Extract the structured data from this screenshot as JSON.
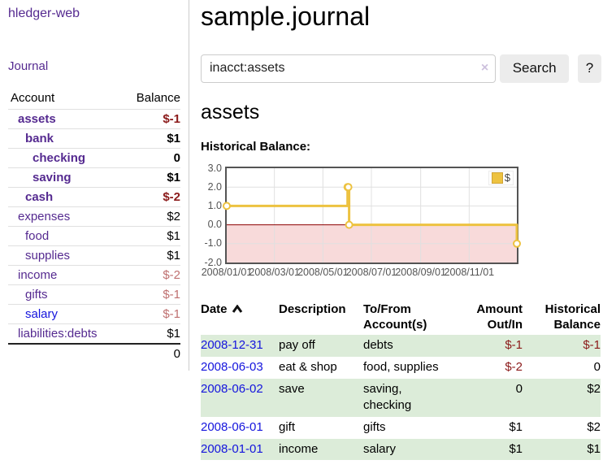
{
  "sidebar": {
    "brand": "hledger-web",
    "nav": [
      {
        "label": "Journal"
      }
    ],
    "accounts_table": {
      "headers": [
        "Account",
        "Balance"
      ],
      "rows": [
        {
          "account": "assets",
          "balance": "$-1",
          "level": 1,
          "bold": true,
          "balance_class": "neg-strong",
          "link_blue": false
        },
        {
          "account": "bank",
          "balance": "$1",
          "level": 2,
          "bold": true,
          "balance_class": "",
          "link_blue": false
        },
        {
          "account": "checking",
          "balance": "0",
          "level": 3,
          "bold": true,
          "balance_class": "",
          "link_blue": false
        },
        {
          "account": "saving",
          "balance": "$1",
          "level": 3,
          "bold": true,
          "balance_class": "",
          "link_blue": false
        },
        {
          "account": "cash",
          "balance": "$-2",
          "level": 2,
          "bold": true,
          "balance_class": "neg-strong",
          "link_blue": false
        },
        {
          "account": "expenses",
          "balance": "$2",
          "level": 1,
          "bold": false,
          "balance_class": "",
          "link_blue": false
        },
        {
          "account": "food",
          "balance": "$1",
          "level": 2,
          "bold": false,
          "balance_class": "",
          "link_blue": false
        },
        {
          "account": "supplies",
          "balance": "$1",
          "level": 2,
          "bold": false,
          "balance_class": "",
          "link_blue": false
        },
        {
          "account": "income",
          "balance": "$-2",
          "level": 1,
          "bold": false,
          "balance_class": "neg-soft",
          "link_blue": false
        },
        {
          "account": "gifts",
          "balance": "$-1",
          "level": 2,
          "bold": false,
          "balance_class": "neg-soft",
          "link_blue": false
        },
        {
          "account": "salary",
          "balance": "$-1",
          "level": 2,
          "bold": false,
          "balance_class": "neg-soft",
          "link_blue": true
        },
        {
          "account": "liabilities:debts",
          "balance": "$1",
          "level": 1,
          "bold": false,
          "balance_class": "",
          "link_blue": false
        }
      ],
      "total": "0"
    }
  },
  "main": {
    "title": "sample.journal",
    "search": {
      "value": "inacct:assets",
      "clear_icon": "×",
      "button_label": "Search",
      "help_label": "?"
    },
    "account_heading": "assets",
    "register_table": {
      "headers": [
        "Date",
        "Description",
        "To/From Account(s)",
        "Amount Out/In",
        "Historical Balance"
      ],
      "rows": [
        {
          "date": "2008-12-31",
          "description": "pay off",
          "accounts": "debts",
          "amount": "$-1",
          "amount_neg": true,
          "balance": "$-1",
          "balance_neg": true
        },
        {
          "date": "2008-06-03",
          "description": "eat & shop",
          "accounts": "food, supplies",
          "amount": "$-2",
          "amount_neg": true,
          "balance": "0",
          "balance_neg": false
        },
        {
          "date": "2008-06-02",
          "description": "save",
          "accounts": "saving,\nchecking",
          "amount": "0",
          "amount_neg": false,
          "balance": "$2",
          "balance_neg": false
        },
        {
          "date": "2008-06-01",
          "description": "gift",
          "accounts": "gifts",
          "amount": "$1",
          "amount_neg": false,
          "balance": "$2",
          "balance_neg": false
        },
        {
          "date": "2008-01-01",
          "description": "income",
          "accounts": "salary",
          "amount": "$1",
          "amount_neg": false,
          "balance": "$1",
          "balance_neg": false
        }
      ]
    }
  },
  "chart_data": {
    "type": "line",
    "title": "Historical Balance:",
    "steps": true,
    "series": [
      {
        "name": "$",
        "color": "#edc240",
        "points": [
          [
            "2008-01-01",
            1
          ],
          [
            "2008-06-01",
            2
          ],
          [
            "2008-06-02",
            2
          ],
          [
            "2008-06-03",
            0
          ],
          [
            "2008-12-31",
            -1
          ]
        ]
      }
    ],
    "x_range": [
      "2008-01-01",
      "2008-12-31"
    ],
    "ylim": [
      -2,
      3
    ],
    "y_ticks": [
      3,
      2,
      1,
      0,
      -1,
      -2
    ],
    "y_tick_labels": [
      "3.0",
      "2.0",
      "1.0",
      "0.0",
      "-1.0",
      "-2.0"
    ],
    "x_ticks": [
      {
        "pos": "2008-01-01",
        "label": "2008/01/01"
      },
      {
        "pos": "2008-03-01",
        "label": "2008/03/01"
      },
      {
        "pos": "2008-05-01",
        "label": "2008/05/01"
      },
      {
        "pos": "2008-07-01",
        "label": "2008/07/01"
      },
      {
        "pos": "2008-09-01",
        "label": "2008/09/01"
      },
      {
        "pos": "2008-11-01",
        "label": "2008/11/01"
      }
    ],
    "grid": true,
    "negative_region_color": "#f8dada",
    "zero_line_color": "#8b0000",
    "grid_color": "#e0e0e0",
    "legend_position": "top-right"
  }
}
